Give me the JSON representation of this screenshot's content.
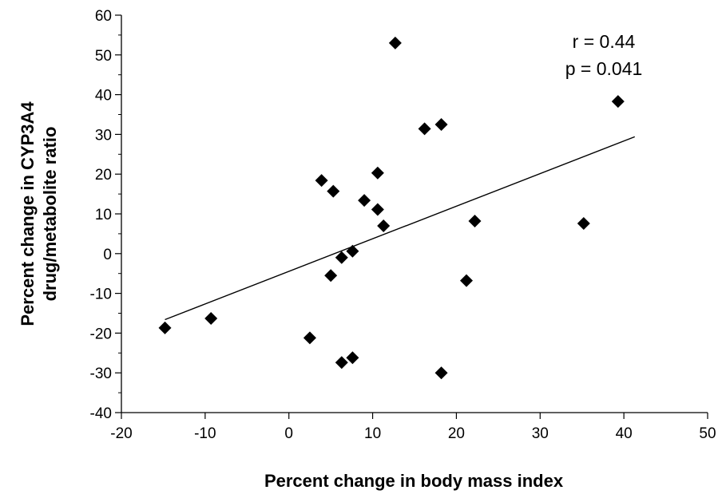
{
  "chart_data": {
    "type": "scatter",
    "title": "",
    "xlabel": "Percent change in body mass index",
    "ylabel_lines": [
      "Percent change in CYP3A4",
      "drug/metabolite ratio"
    ],
    "xlim": [
      -20,
      50
    ],
    "ylim": [
      -40,
      60
    ],
    "x_ticks": [
      -20,
      -10,
      0,
      10,
      20,
      30,
      40,
      50
    ],
    "y_ticks": [
      -40,
      -30,
      -20,
      -10,
      0,
      10,
      20,
      30,
      40,
      50,
      60
    ],
    "x_tick_labels": [
      "-20",
      "-10",
      "0",
      "10",
      "20",
      "30",
      "40",
      "50"
    ],
    "y_tick_labels": [
      "-40",
      "-30",
      "-20",
      "-10",
      "0",
      "10",
      "20",
      "30",
      "40",
      "50",
      "60"
    ],
    "grid": false,
    "marker": "diamond",
    "marker_color": "#000000",
    "points": [
      {
        "x": -14.8,
        "y": -18.7
      },
      {
        "x": -9.3,
        "y": -16.3
      },
      {
        "x": 2.5,
        "y": -21.2
      },
      {
        "x": 3.9,
        "y": 18.4
      },
      {
        "x": 5.0,
        "y": -5.5
      },
      {
        "x": 5.3,
        "y": 15.7
      },
      {
        "x": 6.3,
        "y": -1.0
      },
      {
        "x": 6.3,
        "y": -27.4
      },
      {
        "x": 7.6,
        "y": 0.6
      },
      {
        "x": 7.6,
        "y": -26.2
      },
      {
        "x": 9.0,
        "y": 13.4
      },
      {
        "x": 10.6,
        "y": 20.3
      },
      {
        "x": 10.6,
        "y": 11.1
      },
      {
        "x": 11.3,
        "y": 7.0
      },
      {
        "x": 12.7,
        "y": 53.0
      },
      {
        "x": 16.2,
        "y": 31.4
      },
      {
        "x": 18.2,
        "y": 32.5
      },
      {
        "x": 18.2,
        "y": -30.0
      },
      {
        "x": 21.2,
        "y": -6.8
      },
      {
        "x": 22.2,
        "y": 8.2
      },
      {
        "x": 35.2,
        "y": 7.6
      },
      {
        "x": 39.3,
        "y": 38.3
      }
    ],
    "trendline": {
      "x": [
        -14.8,
        41.3
      ],
      "y": [
        -16.6,
        29.4
      ]
    },
    "annotations": [
      "r = 0.44",
      "p = 0.041"
    ]
  }
}
